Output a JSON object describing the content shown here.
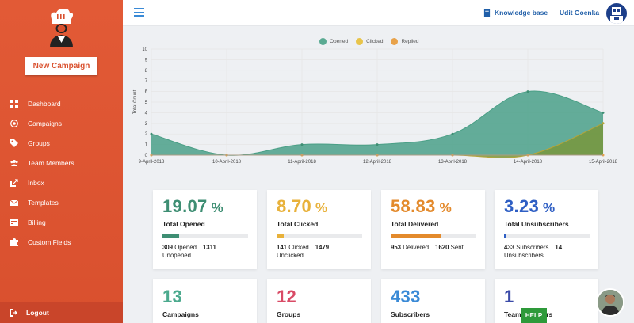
{
  "sidebar": {
    "new_campaign": "New Campaign",
    "items": [
      {
        "label": "Dashboard",
        "icon": "dashboard-icon"
      },
      {
        "label": "Campaigns",
        "icon": "target-icon"
      },
      {
        "label": "Groups",
        "icon": "tags-icon"
      },
      {
        "label": "Team Members",
        "icon": "users-icon"
      },
      {
        "label": "Inbox",
        "icon": "inbox-icon"
      },
      {
        "label": "Templates",
        "icon": "envelope-icon"
      },
      {
        "label": "Billing",
        "icon": "billing-icon"
      },
      {
        "label": "Custom Fields",
        "icon": "puzzle-icon"
      }
    ],
    "logout": "Logout"
  },
  "topbar": {
    "knowledge_base": "Knowledge base",
    "user_name": "Udit Goenka"
  },
  "chart_data": {
    "type": "area",
    "ylabel": "Total Count",
    "ylim": [
      0,
      10
    ],
    "yticks": [
      0,
      1,
      2,
      3,
      4,
      5,
      6,
      7,
      8,
      9,
      10
    ],
    "categories": [
      "9-April-2018",
      "10-April-2018",
      "11-April-2018",
      "12-April-2018",
      "13-April-2018",
      "14-April-2018",
      "15-April-2018"
    ],
    "legend_position": "top",
    "series": [
      {
        "name": "Opened",
        "color": "#5aaa92",
        "values": [
          2,
          0,
          1,
          1,
          2,
          6,
          4
        ]
      },
      {
        "name": "Clicked",
        "color": "#e8c44a",
        "values": [
          0,
          0,
          0,
          0,
          0,
          0,
          3
        ]
      },
      {
        "name": "Replied",
        "color": "#e8a24a",
        "values": [
          0,
          0,
          0,
          0,
          0,
          0,
          0
        ]
      }
    ]
  },
  "cards": [
    {
      "value": "19.07",
      "pct": "%",
      "title": "Total Opened",
      "color": "#3e8e73",
      "progress": 0.19,
      "s1n": "309",
      "s1l": "Opened",
      "s2n": "1311",
      "s2l": "Unopened"
    },
    {
      "value": "8.70",
      "pct": "%",
      "title": "Total Clicked",
      "color": "#e8b13a",
      "progress": 0.087,
      "s1n": "141",
      "s1l": "Clicked",
      "s2n": "1479",
      "s2l": "Unclicked"
    },
    {
      "value": "58.83",
      "pct": "%",
      "title": "Total Delivered",
      "color": "#e38a2c",
      "progress": 0.5883,
      "s1n": "953",
      "s1l": "Delivered",
      "s2n": "1620",
      "s2l": "Sent"
    },
    {
      "value": "3.23",
      "pct": "%",
      "title": "Total Unsubscribers",
      "color": "#2f5fc4",
      "progress": 0.0323,
      "s1n": "433",
      "s1l": "Subscribers",
      "s2n": "14",
      "s2l": "Unsubscribers"
    }
  ],
  "cards2": [
    {
      "value": "13",
      "title": "Campaigns",
      "color": "#4caa8e"
    },
    {
      "value": "12",
      "title": "Groups",
      "color": "#d94b66"
    },
    {
      "value": "433",
      "title": "Subscribers",
      "color": "#3a8ad6"
    },
    {
      "value": "1",
      "title": "Team Members",
      "color": "#3a4aa8"
    }
  ],
  "help_label": "HELP"
}
